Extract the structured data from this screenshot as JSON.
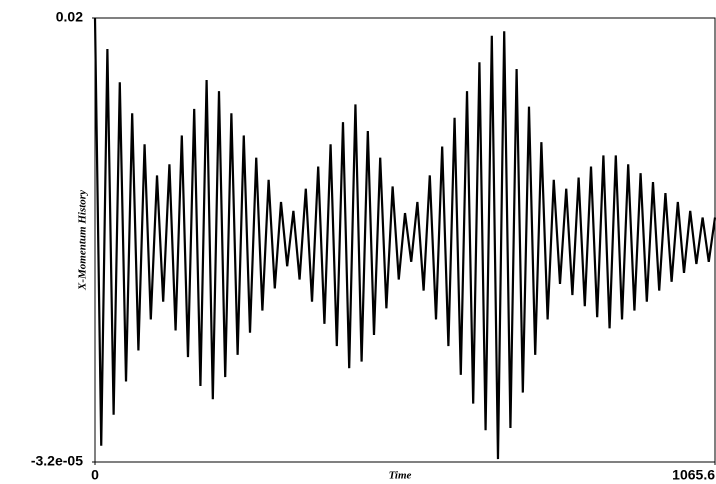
{
  "chart_data": {
    "type": "line",
    "x_label": "Time",
    "y_label": "X-Momentum History",
    "color": "#000000",
    "xlim": [
      0,
      1065.6
    ],
    "ylim": [
      -3.2e-05,
      0.02
    ],
    "xticks": [
      0,
      1065.6
    ],
    "yticks": [
      {
        "value": -3.2e-05,
        "label": "-3.2e-05"
      },
      0.02
    ],
    "x": [
      0,
      10.7,
      21.3,
      32.0,
      42.6,
      53.3,
      63.9,
      74.6,
      85.2,
      95.9,
      106.6,
      117.2,
      127.9,
      138.5,
      149.2,
      159.8,
      170.5,
      181.2,
      191.8,
      202.5,
      213.1,
      223.8,
      234.4,
      245.1,
      255.7,
      266.4,
      277.1,
      287.7,
      298.4,
      309.0,
      319.7,
      330.3,
      341.0,
      351.6,
      362.3,
      373.0,
      383.6,
      394.3,
      404.9,
      415.6,
      426.2,
      436.9,
      447.6,
      458.2,
      468.9,
      479.5,
      490.2,
      500.8,
      511.5,
      522.1,
      532.8,
      543.5,
      554.1,
      564.8,
      575.4,
      586.1,
      596.7,
      607.4,
      618.0,
      628.7,
      639.4,
      650.0,
      660.7,
      671.3,
      682.0,
      692.6,
      703.3,
      714.0,
      724.6,
      735.3,
      745.9,
      756.6,
      767.2,
      777.9,
      788.5,
      799.2,
      809.9,
      820.5,
      831.2,
      841.8,
      852.5,
      863.1,
      873.8,
      884.4,
      895.1,
      905.8,
      916.4,
      927.1,
      937.7,
      948.4,
      959.0,
      969.7,
      980.4,
      991.0,
      1001.7,
      1012.3,
      1023.0,
      1033.6,
      1044.3,
      1054.9,
      1065.6
    ],
    "values": [
      0.02,
      0.0007,
      0.0186,
      0.0021,
      0.0171,
      0.0036,
      0.0157,
      0.005,
      0.0143,
      0.0064,
      0.0129,
      0.0072,
      0.0134,
      0.0059,
      0.0147,
      0.0047,
      0.0159,
      0.0034,
      0.0172,
      0.0028,
      0.0167,
      0.0038,
      0.0157,
      0.0048,
      0.0147,
      0.0058,
      0.0137,
      0.0068,
      0.0127,
      0.0078,
      0.0117,
      0.0088,
      0.0113,
      0.0082,
      0.0123,
      0.0072,
      0.0133,
      0.0062,
      0.0143,
      0.0052,
      0.0153,
      0.0042,
      0.0161,
      0.0045,
      0.0149,
      0.0057,
      0.0137,
      0.0069,
      0.0124,
      0.0082,
      0.0112,
      0.009,
      0.0117,
      0.0077,
      0.0129,
      0.0064,
      0.0142,
      0.0052,
      0.0155,
      0.0039,
      0.0167,
      0.0026,
      0.018,
      0.0014,
      0.0192,
      0.0001,
      0.0194,
      0.0015,
      0.0177,
      0.0031,
      0.016,
      0.0048,
      0.0144,
      0.0064,
      0.0127,
      0.008,
      0.0123,
      0.0075,
      0.0128,
      0.007,
      0.0133,
      0.0065,
      0.0138,
      0.006,
      0.0138,
      0.0064,
      0.0134,
      0.0068,
      0.013,
      0.0072,
      0.0126,
      0.0077,
      0.0121,
      0.0081,
      0.0117,
      0.0085,
      0.0113,
      0.0089,
      0.011,
      0.009,
      0.011
    ]
  }
}
